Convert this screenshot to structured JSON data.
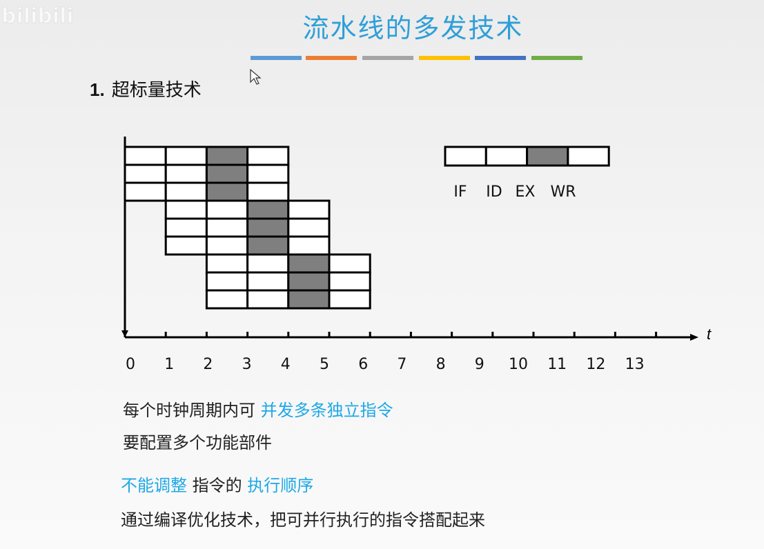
{
  "watermark": "bilibili",
  "title": "流水线的多发技术",
  "title_bar_colors": [
    "#5b9bd5",
    "#ed7d31",
    "#a5a5a5",
    "#ffc000",
    "#4472c4",
    "#70ad47"
  ],
  "heading": {
    "number": "1.",
    "text": "超标量技术"
  },
  "diagram": {
    "time_axis_label": "t",
    "ticks": [
      "0",
      "1",
      "2",
      "3",
      "4",
      "5",
      "6",
      "7",
      "8",
      "9",
      "10",
      "11",
      "12",
      "13"
    ],
    "stage_labels": [
      "IF",
      "ID",
      "EX",
      "WR"
    ],
    "highlight_stage": "EX",
    "highlight_color": "#7f7f7f",
    "instructions": [
      {
        "start": 0
      },
      {
        "start": 0
      },
      {
        "start": 0
      },
      {
        "start": 1
      },
      {
        "start": 1
      },
      {
        "start": 1
      },
      {
        "start": 2
      },
      {
        "start": 2
      },
      {
        "start": 2
      }
    ]
  },
  "text": {
    "line1_plain": "每个时钟周期内可",
    "line1_highlight": "并发多条独立指令",
    "line2": "要配置多个功能部件",
    "line3_highlight1": "不能调整",
    "line3_plain": "指令的",
    "line3_highlight2": "执行顺序",
    "line4": "通过编译优化技术，把可并行执行的指令搭配起来"
  },
  "highlight_color": "#1ea8e6"
}
